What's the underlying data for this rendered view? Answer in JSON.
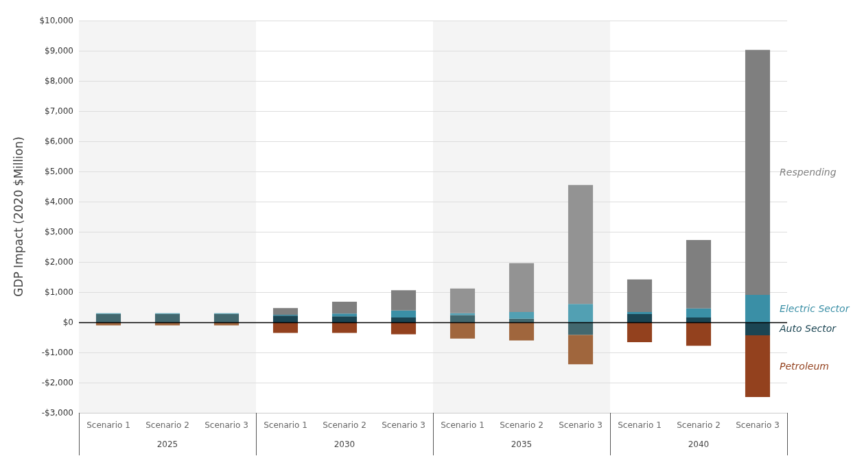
{
  "chart_data": {
    "type": "bar",
    "stacked": true,
    "ylabel": "GDP Impact (2020 $Million)",
    "categories": [
      "Scenario 1",
      "Scenario 2",
      "Scenario 3",
      "Scenario 1",
      "Scenario 2",
      "Scenario 3",
      "Scenario 1",
      "Scenario 2",
      "Scenario 3",
      "Scenario 1",
      "Scenario 2",
      "Scenario 3"
    ],
    "annotations": [
      "2025",
      "2030",
      "2035",
      "2040"
    ],
    "series": [
      {
        "name": "Auto Sector",
        "color": "#1b4553",
        "values": [
          280,
          280,
          280,
          220,
          200,
          160,
          240,
          120,
          -420,
          270,
          160,
          -430
        ],
        "colors": [
          "#42686f",
          "#42686f",
          "#42686f",
          "#1b4553",
          "#1b4553",
          "#1b4553",
          "#42686f",
          "#42686f",
          "#42686f",
          "#1b4553",
          "#1b4553",
          "#1b4553"
        ]
      },
      {
        "name": "Electric Sector",
        "color": "#3a8fa6",
        "values": [
          20,
          20,
          20,
          30,
          90,
          230,
          60,
          220,
          610,
          70,
          300,
          910
        ],
        "colors": [
          "#52a0b3",
          "#52a0b3",
          "#52a0b3",
          "#3a8fa6",
          "#3a8fa6",
          "#3a8fa6",
          "#52a0b3",
          "#52a0b3",
          "#52a0b3",
          "#3a8fa6",
          "#3a8fa6",
          "#3a8fa6"
        ]
      },
      {
        "name": "Respending",
        "color": "#7f7f7f",
        "values": [
          0,
          0,
          0,
          220,
          390,
          670,
          820,
          1620,
          3940,
          1080,
          2270,
          8120
        ],
        "colors": [
          "#939393",
          "#939393",
          "#939393",
          "#7f7f7f",
          "#7f7f7f",
          "#7f7f7f",
          "#939393",
          "#939393",
          "#939393",
          "#7f7f7f",
          "#7f7f7f",
          "#7f7f7f"
        ]
      },
      {
        "name": "Petroleum",
        "color": "#93411e",
        "values": [
          -100,
          -100,
          -100,
          -350,
          -350,
          -400,
          -540,
          -600,
          -970,
          -660,
          -780,
          -2050
        ],
        "colors": [
          "#a0663d",
          "#a0663d",
          "#a0663d",
          "#93411e",
          "#93411e",
          "#93411e",
          "#a0663d",
          "#a0663d",
          "#a0663d",
          "#93411e",
          "#93411e",
          "#93411e"
        ]
      }
    ],
    "ylim": [
      -3000,
      10000
    ],
    "yticks": [
      {
        "value": -3000,
        "label": "-$3,000"
      },
      {
        "value": -2000,
        "label": "-$2,000"
      },
      {
        "value": -1000,
        "label": "-$1,000"
      },
      {
        "value": 0,
        "label": "$0"
      },
      {
        "value": 1000,
        "label": "$1,000"
      },
      {
        "value": 2000,
        "label": "$2,000"
      },
      {
        "value": 3000,
        "label": "$3,000"
      },
      {
        "value": 4000,
        "label": "$4,000"
      },
      {
        "value": 5000,
        "label": "$5,000"
      },
      {
        "value": 6000,
        "label": "$6,000"
      },
      {
        "value": 7000,
        "label": "$7,000"
      },
      {
        "value": 8000,
        "label": "$8,000"
      },
      {
        "value": 9000,
        "label": "$9,000"
      },
      {
        "value": 10000,
        "label": "$10,000"
      }
    ],
    "grid": "y",
    "legend": false,
    "ref_lines": [
      {
        "axis": "y",
        "value": 0,
        "color": "#000000"
      }
    ]
  }
}
